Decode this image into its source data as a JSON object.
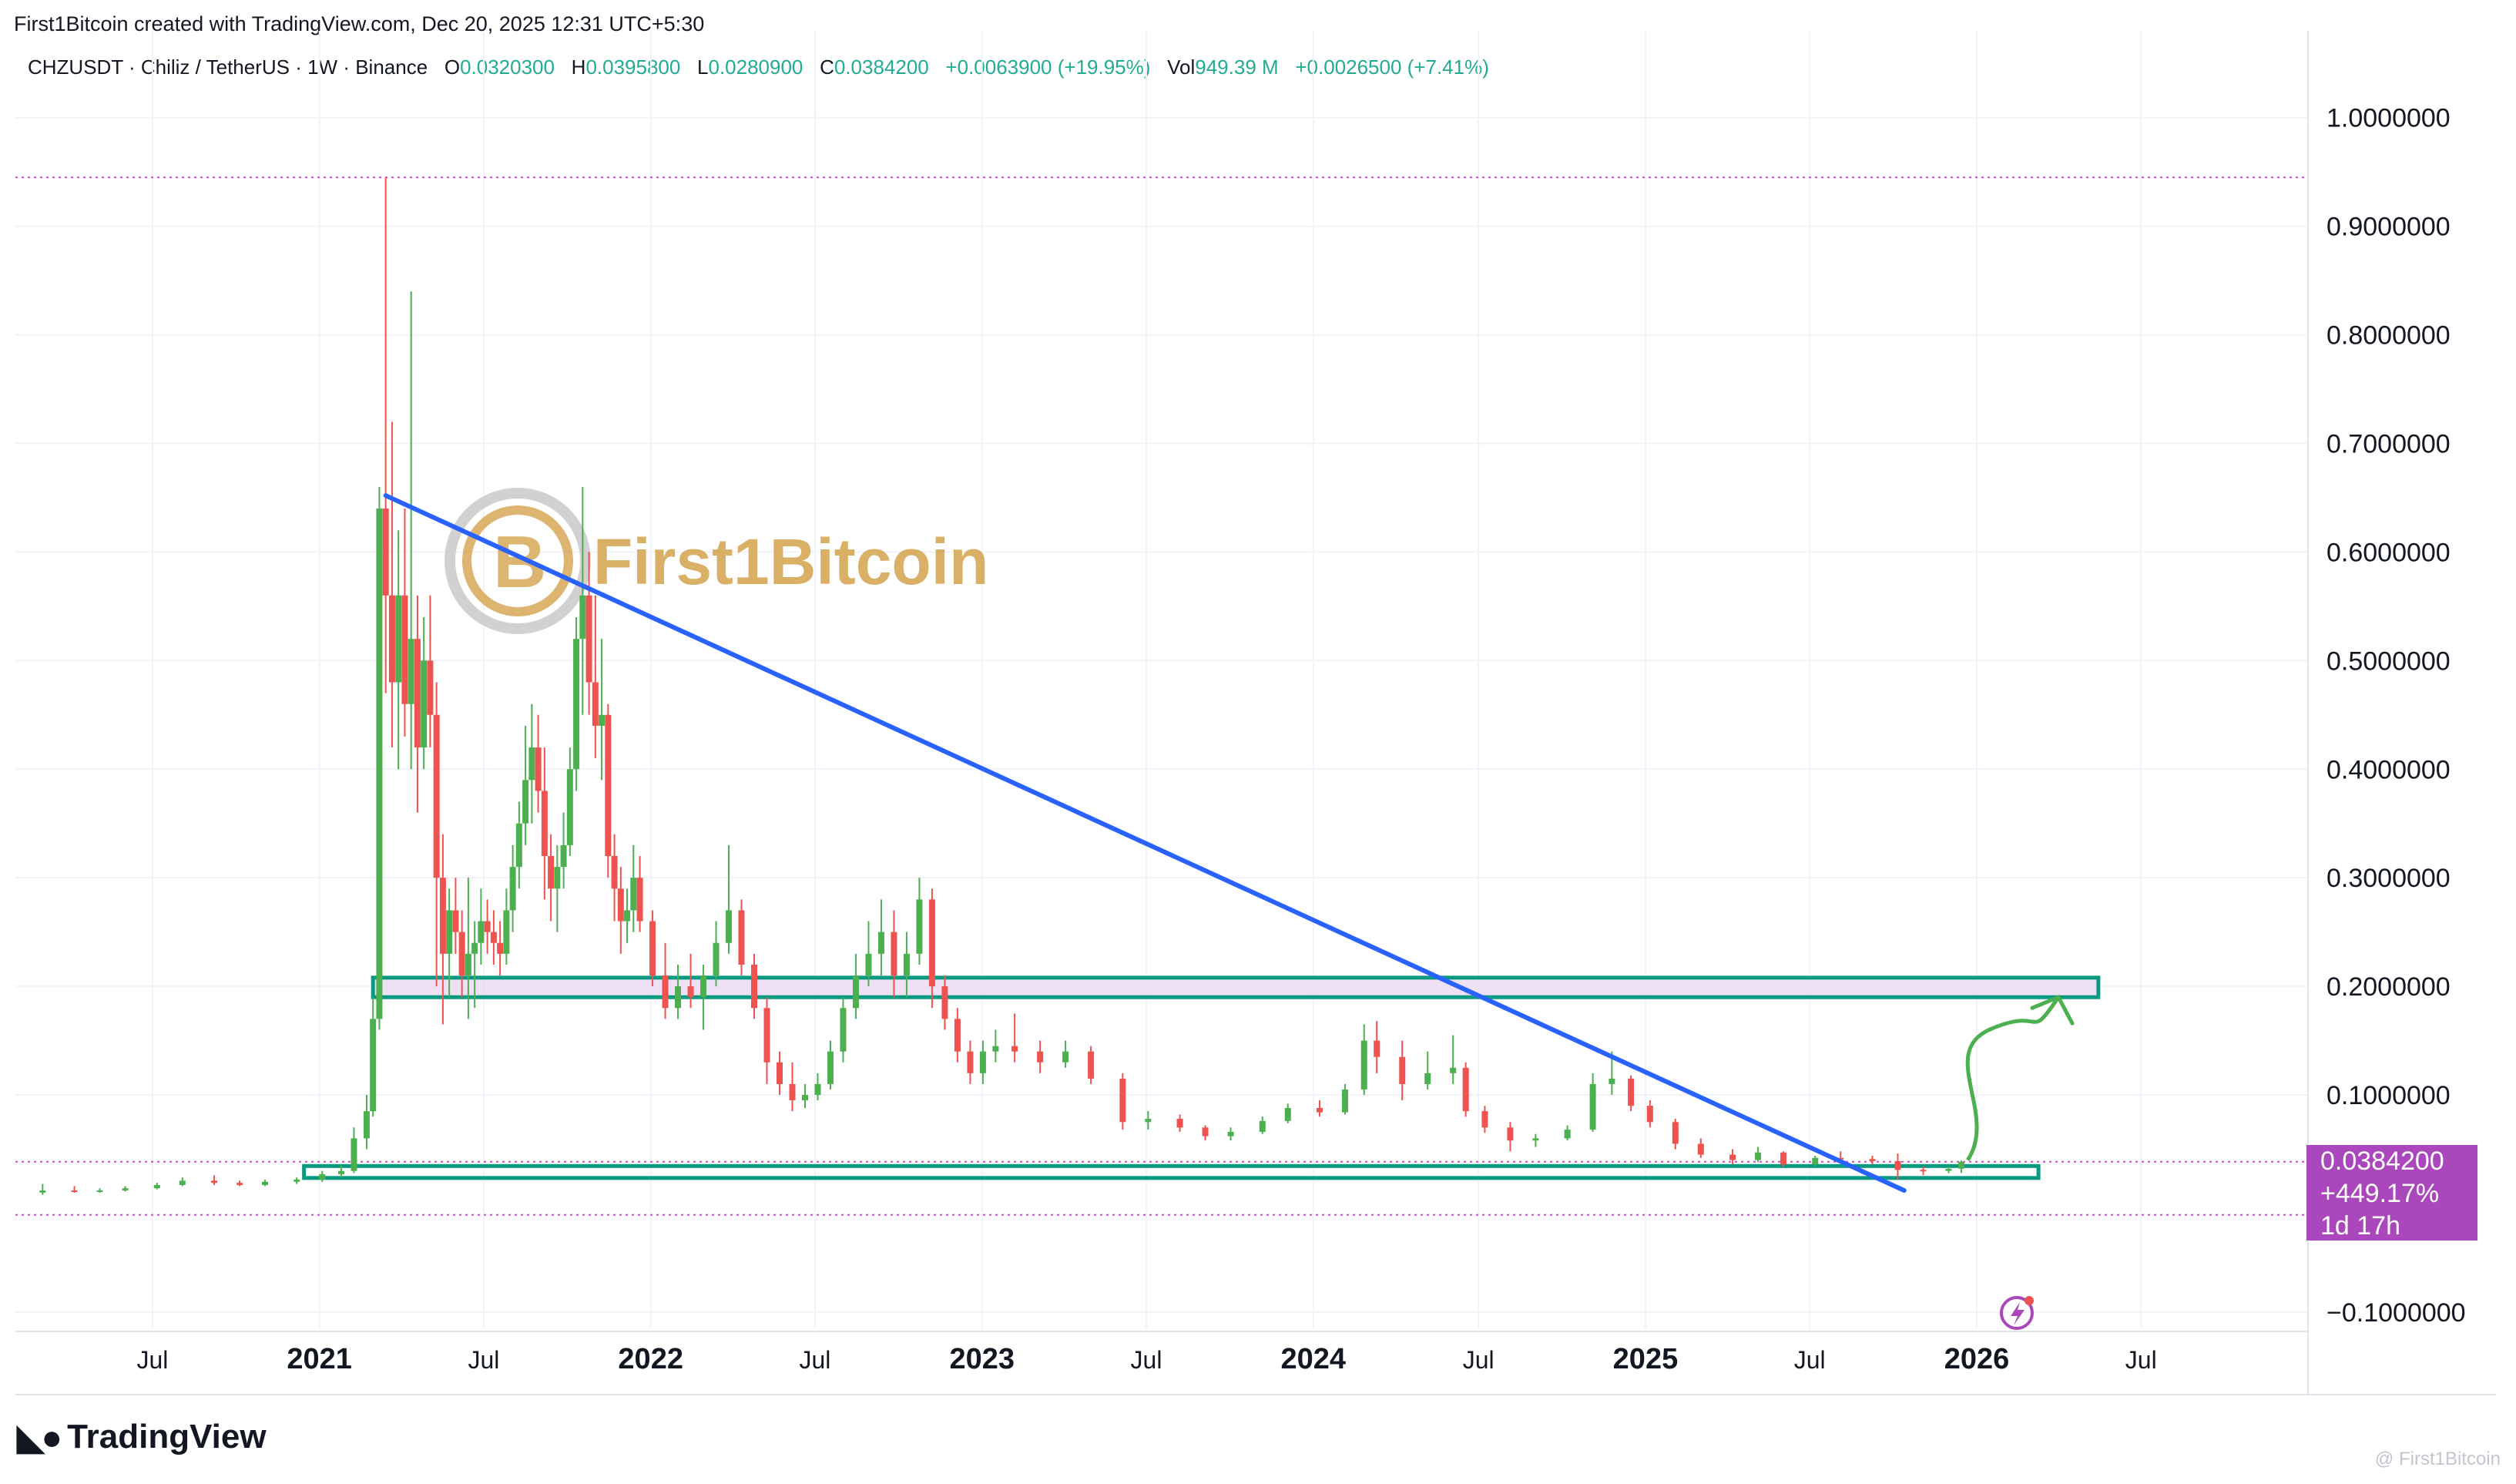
{
  "header": {
    "credit": "First1Bitcoin created with TradingView.com, Dec 20, 2025 12:31 UTC+5:30",
    "symbol_line": "CHZUSDT · Chiliz / TetherUS · 1W · Binance",
    "open_label": "O",
    "open_value": "0.0320300",
    "high_label": "H",
    "high_value": "0.0395800",
    "low_label": "L",
    "low_value": "0.0280900",
    "close_label": "C",
    "close_value": "0.0384200",
    "change": "+0.0063900 (+19.95%)",
    "vol_label": "Vol",
    "vol_value": "949.39 M",
    "vol_change": "+0.0026500 (+7.41%)"
  },
  "price_label": {
    "price": "0.0384200",
    "change_pct": "+449.17%",
    "countdown": "1d 17h"
  },
  "watermark": {
    "text": "First1Bitcoin"
  },
  "branding": {
    "logo_text": "TradingView",
    "footer": "@ First1Bitcoin"
  },
  "colors": {
    "up": "#4caf50",
    "down": "#ef5350",
    "trendline": "#2962ff",
    "zone_border": "#089981",
    "zone_fill": "#e9d5f2",
    "price_label_bg": "#ab47bc",
    "arrow": "#4caf50",
    "dotted_level": "#c154c1",
    "watermark": "#d4a34c"
  },
  "chart_data": {
    "type": "candlestick",
    "title": "CHZUSDT · Chiliz / TetherUS · 1W · Binance",
    "xlabel": "",
    "ylabel": "",
    "x_ticks": [
      "Jul",
      "2021",
      "Jul",
      "2022",
      "Jul",
      "2023",
      "Jul",
      "2024",
      "Jul",
      "2025",
      "Jul",
      "2026",
      "Jul"
    ],
    "x_tick_dates": [
      "2020-07-01",
      "2021-01-01",
      "2021-07-01",
      "2022-01-01",
      "2022-07-01",
      "2023-01-01",
      "2023-07-01",
      "2024-01-01",
      "2024-07-01",
      "2025-01-01",
      "2025-07-01",
      "2026-01-01",
      "2026-07-01"
    ],
    "x_range": [
      "2020-02-01",
      "2027-01-01"
    ],
    "y_ticks": [
      "1.0000000",
      "0.9000000",
      "0.8000000",
      "0.7000000",
      "0.6000000",
      "0.5000000",
      "0.4000000",
      "0.3000000",
      "0.2000000",
      "0.1000000",
      "−0.1000000"
    ],
    "y_tick_values": [
      1.0,
      0.9,
      0.8,
      0.7,
      0.6,
      0.5,
      0.4,
      0.3,
      0.2,
      0.1,
      -0.1
    ],
    "ylim": [
      -0.115,
      1.08
    ],
    "grid": true,
    "series": [
      {
        "name": "CHZUSDT",
        "ohlc_weekly_approx": [
          [
            "2020-03-02",
            0.01,
            0.018,
            0.008,
            0.012
          ],
          [
            "2020-04-06",
            0.012,
            0.016,
            0.01,
            0.011
          ],
          [
            "2020-05-04",
            0.011,
            0.014,
            0.01,
            0.012
          ],
          [
            "2020-06-01",
            0.012,
            0.016,
            0.011,
            0.014
          ],
          [
            "2020-07-06",
            0.014,
            0.019,
            0.013,
            0.017
          ],
          [
            "2020-08-03",
            0.017,
            0.024,
            0.016,
            0.021
          ],
          [
            "2020-09-07",
            0.021,
            0.026,
            0.017,
            0.019
          ],
          [
            "2020-10-05",
            0.019,
            0.021,
            0.016,
            0.017
          ],
          [
            "2020-11-02",
            0.017,
            0.022,
            0.016,
            0.02
          ],
          [
            "2020-12-07",
            0.02,
            0.024,
            0.018,
            0.022
          ],
          [
            "2021-01-04",
            0.022,
            0.03,
            0.02,
            0.027
          ],
          [
            "2021-01-25",
            0.027,
            0.035,
            0.024,
            0.03
          ],
          [
            "2021-02-08",
            0.03,
            0.07,
            0.028,
            0.06
          ],
          [
            "2021-02-22",
            0.06,
            0.1,
            0.05,
            0.085
          ],
          [
            "2021-03-01",
            0.085,
            0.19,
            0.08,
            0.17
          ],
          [
            "2021-03-08",
            0.17,
            0.66,
            0.16,
            0.64
          ],
          [
            "2021-03-15",
            0.64,
            0.945,
            0.47,
            0.56
          ],
          [
            "2021-03-22",
            0.56,
            0.72,
            0.42,
            0.48
          ],
          [
            "2021-03-29",
            0.48,
            0.62,
            0.4,
            0.56
          ],
          [
            "2021-04-05",
            0.56,
            0.64,
            0.43,
            0.46
          ],
          [
            "2021-04-12",
            0.46,
            0.84,
            0.4,
            0.52
          ],
          [
            "2021-04-19",
            0.52,
            0.56,
            0.36,
            0.42
          ],
          [
            "2021-04-26",
            0.42,
            0.54,
            0.4,
            0.5
          ],
          [
            "2021-05-03",
            0.5,
            0.56,
            0.42,
            0.45
          ],
          [
            "2021-05-10",
            0.45,
            0.48,
            0.2,
            0.3
          ],
          [
            "2021-05-17",
            0.3,
            0.34,
            0.165,
            0.23
          ],
          [
            "2021-05-24",
            0.23,
            0.29,
            0.19,
            0.27
          ],
          [
            "2021-05-31",
            0.27,
            0.3,
            0.23,
            0.25
          ],
          [
            "2021-06-07",
            0.25,
            0.27,
            0.19,
            0.21
          ],
          [
            "2021-06-14",
            0.21,
            0.3,
            0.17,
            0.23
          ],
          [
            "2021-06-21",
            0.23,
            0.26,
            0.18,
            0.24
          ],
          [
            "2021-06-28",
            0.24,
            0.29,
            0.22,
            0.26
          ],
          [
            "2021-07-05",
            0.26,
            0.28,
            0.23,
            0.25
          ],
          [
            "2021-07-12",
            0.25,
            0.27,
            0.22,
            0.24
          ],
          [
            "2021-07-19",
            0.24,
            0.26,
            0.21,
            0.23
          ],
          [
            "2021-07-26",
            0.23,
            0.29,
            0.22,
            0.27
          ],
          [
            "2021-08-02",
            0.27,
            0.33,
            0.25,
            0.31
          ],
          [
            "2021-08-09",
            0.31,
            0.37,
            0.29,
            0.35
          ],
          [
            "2021-08-16",
            0.35,
            0.44,
            0.33,
            0.39
          ],
          [
            "2021-08-23",
            0.39,
            0.46,
            0.35,
            0.42
          ],
          [
            "2021-08-30",
            0.42,
            0.45,
            0.36,
            0.38
          ],
          [
            "2021-09-06",
            0.38,
            0.42,
            0.28,
            0.32
          ],
          [
            "2021-09-13",
            0.32,
            0.34,
            0.26,
            0.29
          ],
          [
            "2021-09-20",
            0.29,
            0.33,
            0.25,
            0.31
          ],
          [
            "2021-09-27",
            0.31,
            0.36,
            0.29,
            0.33
          ],
          [
            "2021-10-04",
            0.33,
            0.42,
            0.32,
            0.4
          ],
          [
            "2021-10-11",
            0.4,
            0.54,
            0.38,
            0.52
          ],
          [
            "2021-10-18",
            0.52,
            0.66,
            0.45,
            0.56
          ],
          [
            "2021-10-25",
            0.56,
            0.6,
            0.45,
            0.48
          ],
          [
            "2021-11-01",
            0.48,
            0.56,
            0.41,
            0.44
          ],
          [
            "2021-11-08",
            0.44,
            0.52,
            0.39,
            0.45
          ],
          [
            "2021-11-15",
            0.45,
            0.46,
            0.3,
            0.32
          ],
          [
            "2021-11-22",
            0.32,
            0.34,
            0.26,
            0.29
          ],
          [
            "2021-11-29",
            0.29,
            0.31,
            0.23,
            0.26
          ],
          [
            "2021-12-06",
            0.26,
            0.29,
            0.24,
            0.27
          ],
          [
            "2021-12-13",
            0.27,
            0.33,
            0.25,
            0.3
          ],
          [
            "2021-12-20",
            0.3,
            0.32,
            0.25,
            0.26
          ],
          [
            "2022-01-03",
            0.26,
            0.27,
            0.2,
            0.21
          ],
          [
            "2022-01-17",
            0.21,
            0.24,
            0.17,
            0.18
          ],
          [
            "2022-01-31",
            0.18,
            0.22,
            0.17,
            0.2
          ],
          [
            "2022-02-14",
            0.2,
            0.23,
            0.18,
            0.19
          ],
          [
            "2022-02-28",
            0.19,
            0.22,
            0.16,
            0.21
          ],
          [
            "2022-03-14",
            0.21,
            0.26,
            0.2,
            0.24
          ],
          [
            "2022-03-28",
            0.24,
            0.33,
            0.23,
            0.27
          ],
          [
            "2022-04-11",
            0.27,
            0.28,
            0.21,
            0.22
          ],
          [
            "2022-04-25",
            0.22,
            0.23,
            0.17,
            0.18
          ],
          [
            "2022-05-09",
            0.18,
            0.19,
            0.11,
            0.13
          ],
          [
            "2022-05-23",
            0.13,
            0.14,
            0.1,
            0.11
          ],
          [
            "2022-06-06",
            0.11,
            0.13,
            0.085,
            0.095
          ],
          [
            "2022-06-20",
            0.095,
            0.11,
            0.088,
            0.1
          ],
          [
            "2022-07-04",
            0.1,
            0.12,
            0.095,
            0.11
          ],
          [
            "2022-07-18",
            0.11,
            0.15,
            0.105,
            0.14
          ],
          [
            "2022-08-01",
            0.14,
            0.19,
            0.13,
            0.18
          ],
          [
            "2022-08-15",
            0.18,
            0.23,
            0.17,
            0.21
          ],
          [
            "2022-08-29",
            0.21,
            0.26,
            0.2,
            0.23
          ],
          [
            "2022-09-12",
            0.23,
            0.28,
            0.21,
            0.25
          ],
          [
            "2022-09-26",
            0.25,
            0.27,
            0.19,
            0.21
          ],
          [
            "2022-10-10",
            0.21,
            0.25,
            0.19,
            0.23
          ],
          [
            "2022-10-24",
            0.23,
            0.3,
            0.22,
            0.28
          ],
          [
            "2022-11-07",
            0.28,
            0.29,
            0.18,
            0.2
          ],
          [
            "2022-11-21",
            0.2,
            0.21,
            0.16,
            0.17
          ],
          [
            "2022-12-05",
            0.17,
            0.18,
            0.13,
            0.14
          ],
          [
            "2022-12-19",
            0.14,
            0.15,
            0.11,
            0.12
          ],
          [
            "2023-01-02",
            0.12,
            0.15,
            0.11,
            0.14
          ],
          [
            "2023-01-16",
            0.14,
            0.16,
            0.13,
            0.145
          ],
          [
            "2023-02-06",
            0.145,
            0.175,
            0.13,
            0.14
          ],
          [
            "2023-03-06",
            0.14,
            0.15,
            0.12,
            0.13
          ],
          [
            "2023-04-03",
            0.13,
            0.15,
            0.125,
            0.14
          ],
          [
            "2023-05-01",
            0.14,
            0.145,
            0.11,
            0.115
          ],
          [
            "2023-06-05",
            0.115,
            0.12,
            0.068,
            0.075
          ],
          [
            "2023-07-03",
            0.075,
            0.085,
            0.068,
            0.078
          ],
          [
            "2023-08-07",
            0.078,
            0.082,
            0.066,
            0.07
          ],
          [
            "2023-09-04",
            0.07,
            0.072,
            0.058,
            0.062
          ],
          [
            "2023-10-02",
            0.062,
            0.07,
            0.058,
            0.066
          ],
          [
            "2023-11-06",
            0.066,
            0.08,
            0.064,
            0.076
          ],
          [
            "2023-12-04",
            0.076,
            0.092,
            0.074,
            0.088
          ],
          [
            "2024-01-08",
            0.088,
            0.095,
            0.08,
            0.084
          ],
          [
            "2024-02-05",
            0.084,
            0.11,
            0.082,
            0.105
          ],
          [
            "2024-02-26",
            0.105,
            0.165,
            0.1,
            0.15
          ],
          [
            "2024-03-11",
            0.15,
            0.168,
            0.12,
            0.135
          ],
          [
            "2024-04-08",
            0.135,
            0.15,
            0.095,
            0.11
          ],
          [
            "2024-05-06",
            0.11,
            0.14,
            0.105,
            0.12
          ],
          [
            "2024-06-03",
            0.12,
            0.155,
            0.11,
            0.125
          ],
          [
            "2024-06-17",
            0.125,
            0.13,
            0.08,
            0.085
          ],
          [
            "2024-07-08",
            0.085,
            0.09,
            0.065,
            0.07
          ],
          [
            "2024-08-05",
            0.07,
            0.075,
            0.048,
            0.058
          ],
          [
            "2024-09-02",
            0.058,
            0.064,
            0.052,
            0.06
          ],
          [
            "2024-10-07",
            0.06,
            0.072,
            0.058,
            0.068
          ],
          [
            "2024-11-04",
            0.068,
            0.12,
            0.066,
            0.11
          ],
          [
            "2024-11-25",
            0.11,
            0.14,
            0.1,
            0.115
          ],
          [
            "2024-12-16",
            0.115,
            0.118,
            0.085,
            0.09
          ],
          [
            "2025-01-06",
            0.09,
            0.095,
            0.07,
            0.075
          ],
          [
            "2025-02-03",
            0.075,
            0.078,
            0.05,
            0.055
          ],
          [
            "2025-03-03",
            0.055,
            0.06,
            0.042,
            0.045
          ],
          [
            "2025-04-07",
            0.045,
            0.05,
            0.036,
            0.04
          ],
          [
            "2025-05-05",
            0.04,
            0.052,
            0.038,
            0.047
          ],
          [
            "2025-06-02",
            0.047,
            0.048,
            0.034,
            0.036
          ],
          [
            "2025-07-07",
            0.036,
            0.044,
            0.034,
            0.042
          ],
          [
            "2025-08-04",
            0.042,
            0.048,
            0.038,
            0.041
          ],
          [
            "2025-09-08",
            0.041,
            0.044,
            0.036,
            0.039
          ],
          [
            "2025-10-06",
            0.039,
            0.046,
            0.022,
            0.031
          ],
          [
            "2025-11-03",
            0.031,
            0.034,
            0.026,
            0.03
          ],
          [
            "2025-12-01",
            0.03,
            0.034,
            0.028,
            0.032
          ],
          [
            "2025-12-15",
            0.03203,
            0.03958,
            0.02809,
            0.03842
          ]
        ]
      }
    ],
    "drawings": {
      "trendline": {
        "from": [
          "2021-03-15",
          0.652
        ],
        "to": [
          "2025-10-13",
          0.012
        ]
      },
      "resistance_zone": {
        "from": "2021-03-01",
        "to": "2026-05-15",
        "low": 0.19,
        "high": 0.208
      },
      "support_zone": {
        "from": "2020-12-15",
        "to": "2026-03-10",
        "low": 0.0235,
        "high": 0.0345
      },
      "dotted_levels": [
        0.945,
        0.03842,
        -0.0105
      ],
      "projection_arrow": {
        "from": [
          "2025-12-22",
          0.04
        ],
        "to": [
          "2026-04-01",
          0.19
        ]
      }
    },
    "legend": "top-left"
  }
}
